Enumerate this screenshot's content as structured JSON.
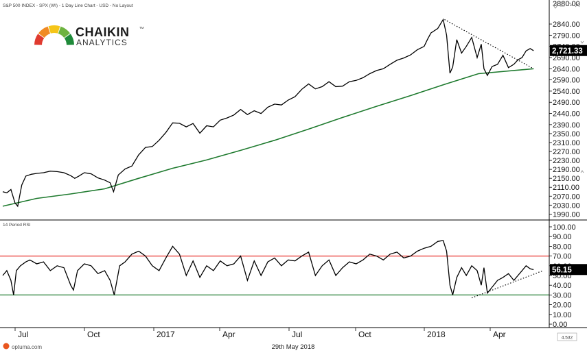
{
  "header": {
    "title": "S&P 500 INDEX - SPX (WI) - 1 Day Line Chart - USD - No Layout"
  },
  "logo": {
    "name": "CHAIKIN",
    "sub": "ANALYTICS",
    "tm": "TM",
    "colors": [
      "#e03a2f",
      "#f08a24",
      "#f5c518",
      "#6db33f",
      "#1f8a3a"
    ]
  },
  "footer": {
    "brand": "optuma.com",
    "date": "29th May 2018",
    "corner_value": "4.532"
  },
  "chart_data": [
    {
      "type": "line",
      "title": "S&P 500 INDEX - SPX (WI) - 1 Day Line Chart - USD - No Layout",
      "yticks": [
        2840,
        2790,
        2740,
        2690,
        2640,
        2590,
        2540,
        2490,
        2440,
        2390,
        2350,
        2310,
        2270,
        2230,
        2190,
        2150,
        2110,
        2070,
        2030,
        1990
      ],
      "ytick_labels": [
        "2840.00",
        "2790.00",
        "2740.00",
        "2690.00",
        "2640.00",
        "2590.00",
        "2540.00",
        "2490.00",
        "2440.00",
        "2390.00",
        "2350.00",
        "2310.00",
        "2270.00",
        "2230.00",
        "2190.00",
        "2150.00",
        "2110.00",
        "2070.00",
        "2030.00",
        "1990.00"
      ],
      "top_label": "2880.00",
      "ylim": [
        1985,
        2880
      ],
      "last_value": 2721.33,
      "last_label": "2,721.33",
      "xlabels": [
        "Jul",
        "Oct",
        "2017",
        "Apr",
        "Jul",
        "Oct",
        "2018",
        "Apr"
      ],
      "series": [
        {
          "kind": "price",
          "color": "#000000",
          "x": [
            0,
            6,
            12,
            18,
            22,
            28,
            34,
            42,
            50,
            60,
            70,
            80,
            90,
            100,
            106,
            112,
            120,
            130,
            140,
            150,
            158,
            163,
            170,
            180,
            190,
            200,
            210,
            220,
            230,
            240,
            250,
            260,
            270,
            280,
            290,
            300,
            310,
            320,
            330,
            340,
            350,
            360,
            370,
            380,
            390,
            400,
            410,
            420,
            430,
            440,
            450,
            460,
            470,
            480,
            490,
            500,
            510,
            520,
            530,
            540,
            550,
            560,
            570,
            580,
            590,
            600,
            610,
            620,
            625,
            630,
            640,
            648,
            653,
            658,
            662,
            668,
            675,
            682,
            690,
            698,
            704,
            708,
            713,
            720,
            728,
            736,
            744,
            752,
            758,
            764,
            770,
            776,
            781
          ],
          "y": [
            2090,
            2085,
            2100,
            2040,
            2025,
            2120,
            2160,
            2168,
            2172,
            2175,
            2182,
            2180,
            2175,
            2162,
            2150,
            2160,
            2175,
            2170,
            2152,
            2142,
            2130,
            2090,
            2165,
            2192,
            2205,
            2255,
            2288,
            2292,
            2320,
            2355,
            2398,
            2396,
            2380,
            2395,
            2352,
            2385,
            2380,
            2410,
            2420,
            2433,
            2458,
            2435,
            2452,
            2440,
            2468,
            2482,
            2478,
            2500,
            2515,
            2548,
            2572,
            2550,
            2560,
            2582,
            2560,
            2562,
            2582,
            2588,
            2600,
            2618,
            2632,
            2640,
            2660,
            2678,
            2688,
            2702,
            2725,
            2740,
            2772,
            2800,
            2820,
            2860,
            2790,
            2620,
            2648,
            2770,
            2710,
            2740,
            2780,
            2690,
            2750,
            2640,
            2610,
            2650,
            2660,
            2700,
            2645,
            2660,
            2680,
            2690,
            2720,
            2730,
            2721
          ]
        },
        {
          "kind": "moving-average",
          "color": "#1e7a2e",
          "x": [
            0,
            50,
            100,
            150,
            200,
            250,
            300,
            350,
            400,
            450,
            500,
            550,
            600,
            650,
            700,
            781
          ],
          "y": [
            2025,
            2060,
            2080,
            2103,
            2150,
            2195,
            2232,
            2275,
            2320,
            2370,
            2422,
            2472,
            2520,
            2570,
            2618,
            2640
          ]
        },
        {
          "kind": "trendline",
          "style": "dotted",
          "x": [
            650,
            781
          ],
          "y": [
            2860,
            2640
          ]
        }
      ]
    },
    {
      "type": "line",
      "title": "14 Period RSI",
      "yticks": [
        100,
        90,
        80,
        70,
        60,
        50,
        40,
        30,
        20,
        10,
        0
      ],
      "ytick_labels": [
        "100.00",
        "90.00",
        "80.00",
        "70.00",
        "60.00",
        "50.00",
        "40.00",
        "30.00",
        "20.00",
        "10.00",
        "0.00"
      ],
      "ylim": [
        0,
        100
      ],
      "last_value": 56.15,
      "last_label": "56.15",
      "levels": [
        {
          "value": 70,
          "color": "#e8312a"
        },
        {
          "value": 30,
          "color": "#1e7a2e"
        }
      ],
      "series": [
        {
          "kind": "rsi",
          "color": "#000000",
          "x": [
            0,
            6,
            12,
            16,
            20,
            26,
            34,
            40,
            50,
            60,
            70,
            80,
            90,
            100,
            104,
            110,
            120,
            130,
            140,
            150,
            158,
            164,
            172,
            180,
            190,
            200,
            210,
            220,
            230,
            240,
            250,
            260,
            270,
            280,
            290,
            300,
            310,
            320,
            330,
            340,
            350,
            360,
            370,
            380,
            390,
            400,
            410,
            420,
            430,
            440,
            450,
            460,
            470,
            480,
            490,
            500,
            510,
            520,
            530,
            540,
            550,
            560,
            570,
            580,
            590,
            600,
            610,
            620,
            630,
            640,
            648,
            653,
            658,
            662,
            668,
            675,
            682,
            690,
            698,
            704,
            708,
            713,
            720,
            728,
            736,
            744,
            752,
            758,
            764,
            770,
            776,
            781
          ],
          "y": [
            50,
            55,
            45,
            30,
            55,
            60,
            64,
            66,
            62,
            64,
            55,
            60,
            58,
            40,
            35,
            55,
            62,
            60,
            52,
            55,
            45,
            30,
            60,
            64,
            72,
            75,
            70,
            60,
            55,
            68,
            80,
            72,
            50,
            65,
            48,
            60,
            55,
            65,
            60,
            62,
            70,
            45,
            65,
            50,
            64,
            68,
            60,
            66,
            65,
            70,
            74,
            50,
            60,
            66,
            50,
            58,
            64,
            62,
            66,
            72,
            70,
            66,
            72,
            74,
            68,
            70,
            75,
            78,
            80,
            85,
            86,
            75,
            40,
            30,
            48,
            58,
            50,
            60,
            55,
            40,
            58,
            32,
            38,
            45,
            48,
            52,
            45,
            50,
            55,
            60,
            57,
            56
          ]
        },
        {
          "kind": "trendline",
          "style": "dotted",
          "x": [
            690,
            795
          ],
          "y": [
            27,
            55
          ]
        }
      ]
    }
  ]
}
